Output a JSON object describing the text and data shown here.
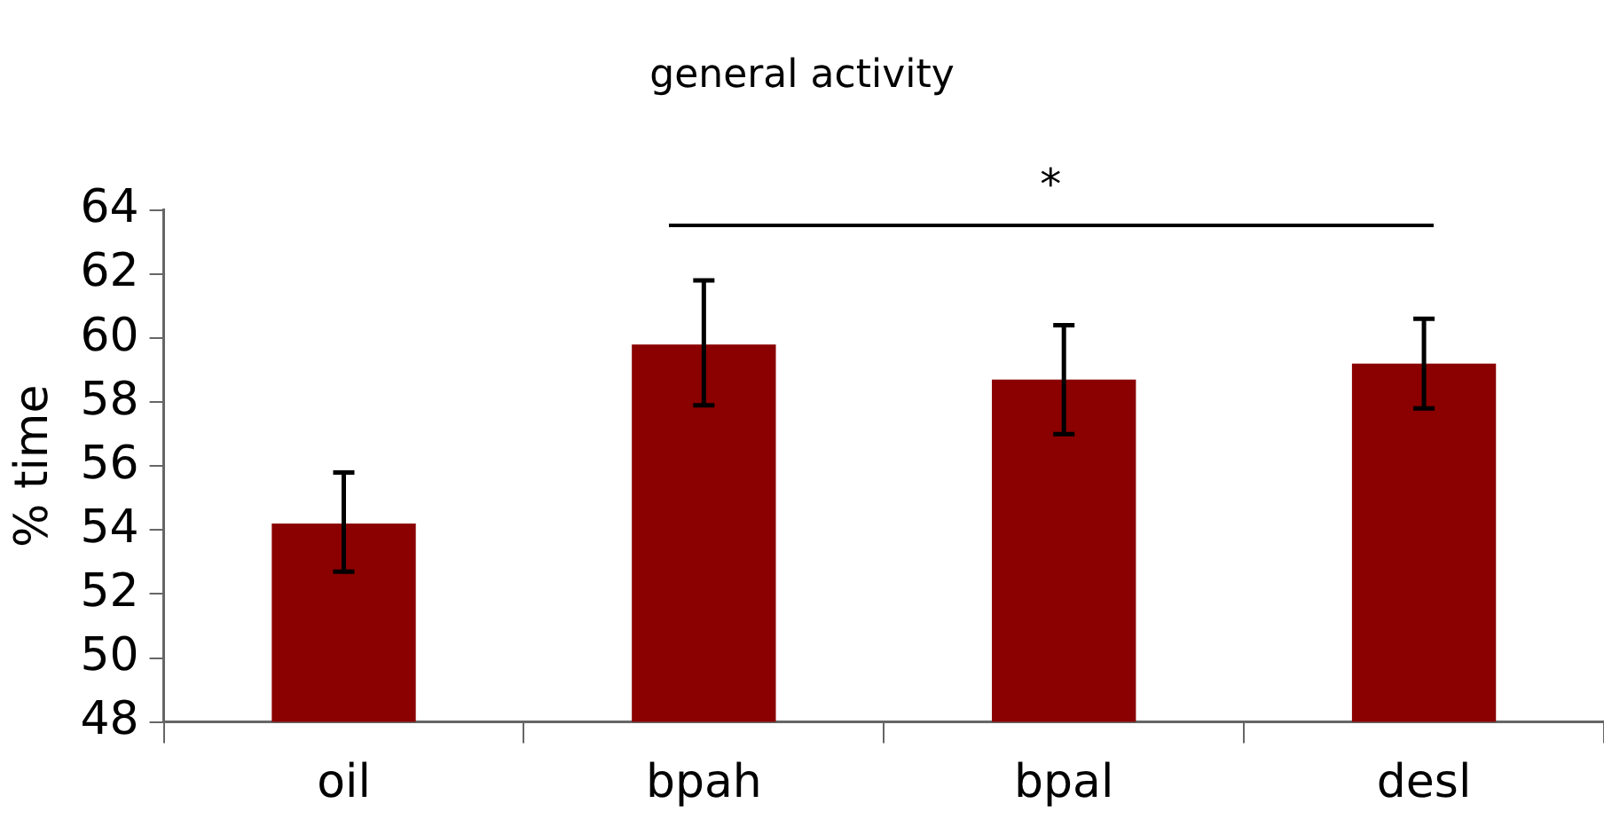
{
  "chart_data": {
    "type": "bar",
    "title": "general activity",
    "ylabel": "% time",
    "categories": [
      "oil",
      "bpah",
      "bpal",
      "desl"
    ],
    "values": [
      54.2,
      59.8,
      58.7,
      59.2
    ],
    "errors": [
      [
        52.7,
        55.8
      ],
      [
        57.9,
        61.8
      ],
      [
        57.0,
        60.4
      ],
      [
        57.8,
        60.6
      ]
    ],
    "color": "#8b0000",
    "ylim": [
      48,
      64
    ],
    "yticks": [
      48,
      50,
      52,
      54,
      56,
      58,
      60,
      62,
      64
    ],
    "grid": false,
    "annotations": [
      "*"
    ]
  }
}
